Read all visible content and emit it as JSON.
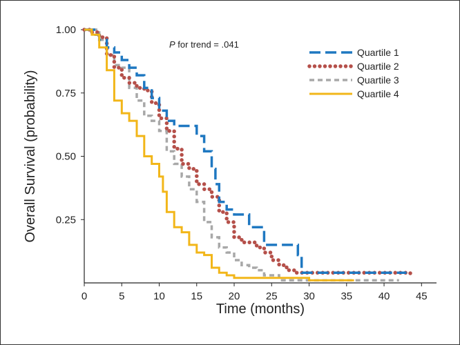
{
  "chart_data": {
    "type": "line",
    "title": "",
    "xlabel": "Time (months)",
    "ylabel": "Overall Survival (probability)",
    "xlim": [
      0,
      47
    ],
    "ylim": [
      0,
      1.0
    ],
    "x_ticks": [
      "0",
      "5",
      "10",
      "15",
      "20",
      "25",
      "30",
      "35",
      "40",
      "45"
    ],
    "y_ticks": [
      "0.25",
      "0.50",
      "0.75",
      "1.00"
    ],
    "annotation": {
      "italic_part": "P",
      "rest": " for trend = .041"
    },
    "legend_position": "top-right",
    "series": [
      {
        "name": "Quartile 1",
        "color": "#1f78c1",
        "style": "long-dash",
        "points": [
          [
            0,
            1.0
          ],
          [
            1.5,
            0.98
          ],
          [
            2,
            0.96
          ],
          [
            3,
            0.93
          ],
          [
            4,
            0.91
          ],
          [
            5,
            0.88
          ],
          [
            6,
            0.85
          ],
          [
            7,
            0.82
          ],
          [
            8,
            0.77
          ],
          [
            9,
            0.73
          ],
          [
            10,
            0.68
          ],
          [
            11,
            0.64
          ],
          [
            12,
            0.62
          ],
          [
            14,
            0.62
          ],
          [
            15,
            0.58
          ],
          [
            16,
            0.52
          ],
          [
            17,
            0.45
          ],
          [
            17.5,
            0.39
          ],
          [
            18,
            0.32
          ],
          [
            19,
            0.29
          ],
          [
            20,
            0.27
          ],
          [
            22,
            0.22
          ],
          [
            24,
            0.15
          ],
          [
            28,
            0.15
          ],
          [
            28.5,
            0.11
          ],
          [
            29,
            0.04
          ],
          [
            43,
            0.04
          ]
        ]
      },
      {
        "name": "Quartile 2",
        "color": "#b5504a",
        "style": "dots",
        "points": [
          [
            0,
            1.0
          ],
          [
            1,
            0.99
          ],
          [
            2,
            0.97
          ],
          [
            3,
            0.9
          ],
          [
            4,
            0.85
          ],
          [
            5,
            0.81
          ],
          [
            6,
            0.79
          ],
          [
            7,
            0.77
          ],
          [
            8,
            0.76
          ],
          [
            9,
            0.71
          ],
          [
            10,
            0.65
          ],
          [
            11,
            0.6
          ],
          [
            12,
            0.53
          ],
          [
            13,
            0.47
          ],
          [
            14,
            0.45
          ],
          [
            15,
            0.39
          ],
          [
            16,
            0.37
          ],
          [
            17,
            0.34
          ],
          [
            18,
            0.28
          ],
          [
            19,
            0.24
          ],
          [
            20,
            0.18
          ],
          [
            21,
            0.16
          ],
          [
            22,
            0.16
          ],
          [
            23,
            0.14
          ],
          [
            24,
            0.12
          ],
          [
            25,
            0.09
          ],
          [
            26,
            0.07
          ],
          [
            27,
            0.05
          ],
          [
            28,
            0.04
          ],
          [
            42,
            0.04
          ],
          [
            43.5,
            0.02
          ]
        ]
      },
      {
        "name": "Quartile 3",
        "color": "#a8a8a8",
        "style": "short-dash",
        "points": [
          [
            0,
            1.0
          ],
          [
            2,
            0.96
          ],
          [
            3,
            0.9
          ],
          [
            4,
            0.86
          ],
          [
            5,
            0.85
          ],
          [
            6,
            0.77
          ],
          [
            7,
            0.72
          ],
          [
            8,
            0.66
          ],
          [
            9,
            0.64
          ],
          [
            10,
            0.6
          ],
          [
            11,
            0.52
          ],
          [
            12,
            0.47
          ],
          [
            13,
            0.42
          ],
          [
            14,
            0.37
          ],
          [
            15,
            0.32
          ],
          [
            16,
            0.24
          ],
          [
            17,
            0.18
          ],
          [
            18,
            0.14
          ],
          [
            19,
            0.12
          ],
          [
            20,
            0.09
          ],
          [
            21,
            0.07
          ],
          [
            22,
            0.06
          ],
          [
            23,
            0.05
          ],
          [
            24,
            0.03
          ],
          [
            26,
            0.01
          ],
          [
            42,
            0.01
          ]
        ]
      },
      {
        "name": "Quartile 4",
        "color": "#f2b619",
        "style": "solid",
        "points": [
          [
            0,
            1.0
          ],
          [
            1,
            0.98
          ],
          [
            2,
            0.93
          ],
          [
            3,
            0.84
          ],
          [
            4,
            0.72
          ],
          [
            5,
            0.67
          ],
          [
            6,
            0.64
          ],
          [
            7,
            0.58
          ],
          [
            8,
            0.5
          ],
          [
            9,
            0.47
          ],
          [
            10,
            0.42
          ],
          [
            10.5,
            0.36
          ],
          [
            11,
            0.28
          ],
          [
            12,
            0.22
          ],
          [
            13,
            0.2
          ],
          [
            14,
            0.15
          ],
          [
            15,
            0.12
          ],
          [
            16,
            0.11
          ],
          [
            17,
            0.06
          ],
          [
            18,
            0.04
          ],
          [
            19,
            0.03
          ],
          [
            20,
            0.02
          ],
          [
            30,
            0.01
          ],
          [
            36,
            0.01
          ]
        ]
      }
    ]
  }
}
